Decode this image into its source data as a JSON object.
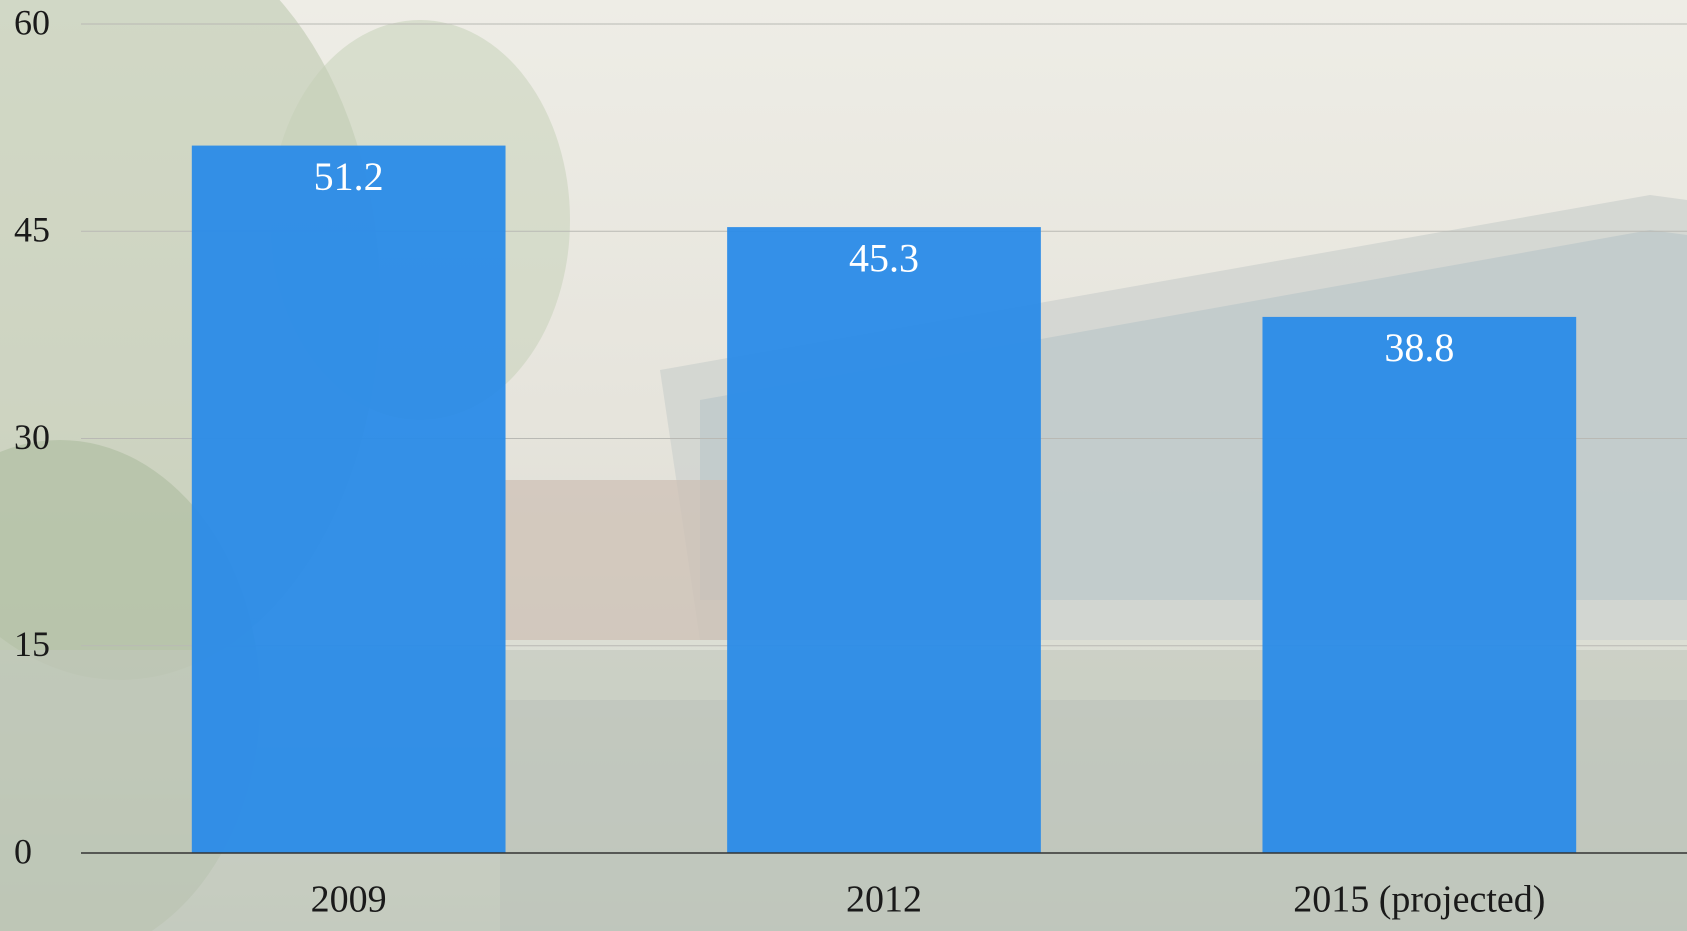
{
  "chart_data": {
    "type": "bar",
    "categories": [
      "2009",
      "2012",
      "2015 (projected)"
    ],
    "values": [
      51.2,
      45.3,
      38.8
    ],
    "color": "#2a8be8",
    "ylim": [
      0,
      60
    ],
    "yticks": [
      0,
      15,
      30,
      45,
      60
    ],
    "grid": true
  }
}
